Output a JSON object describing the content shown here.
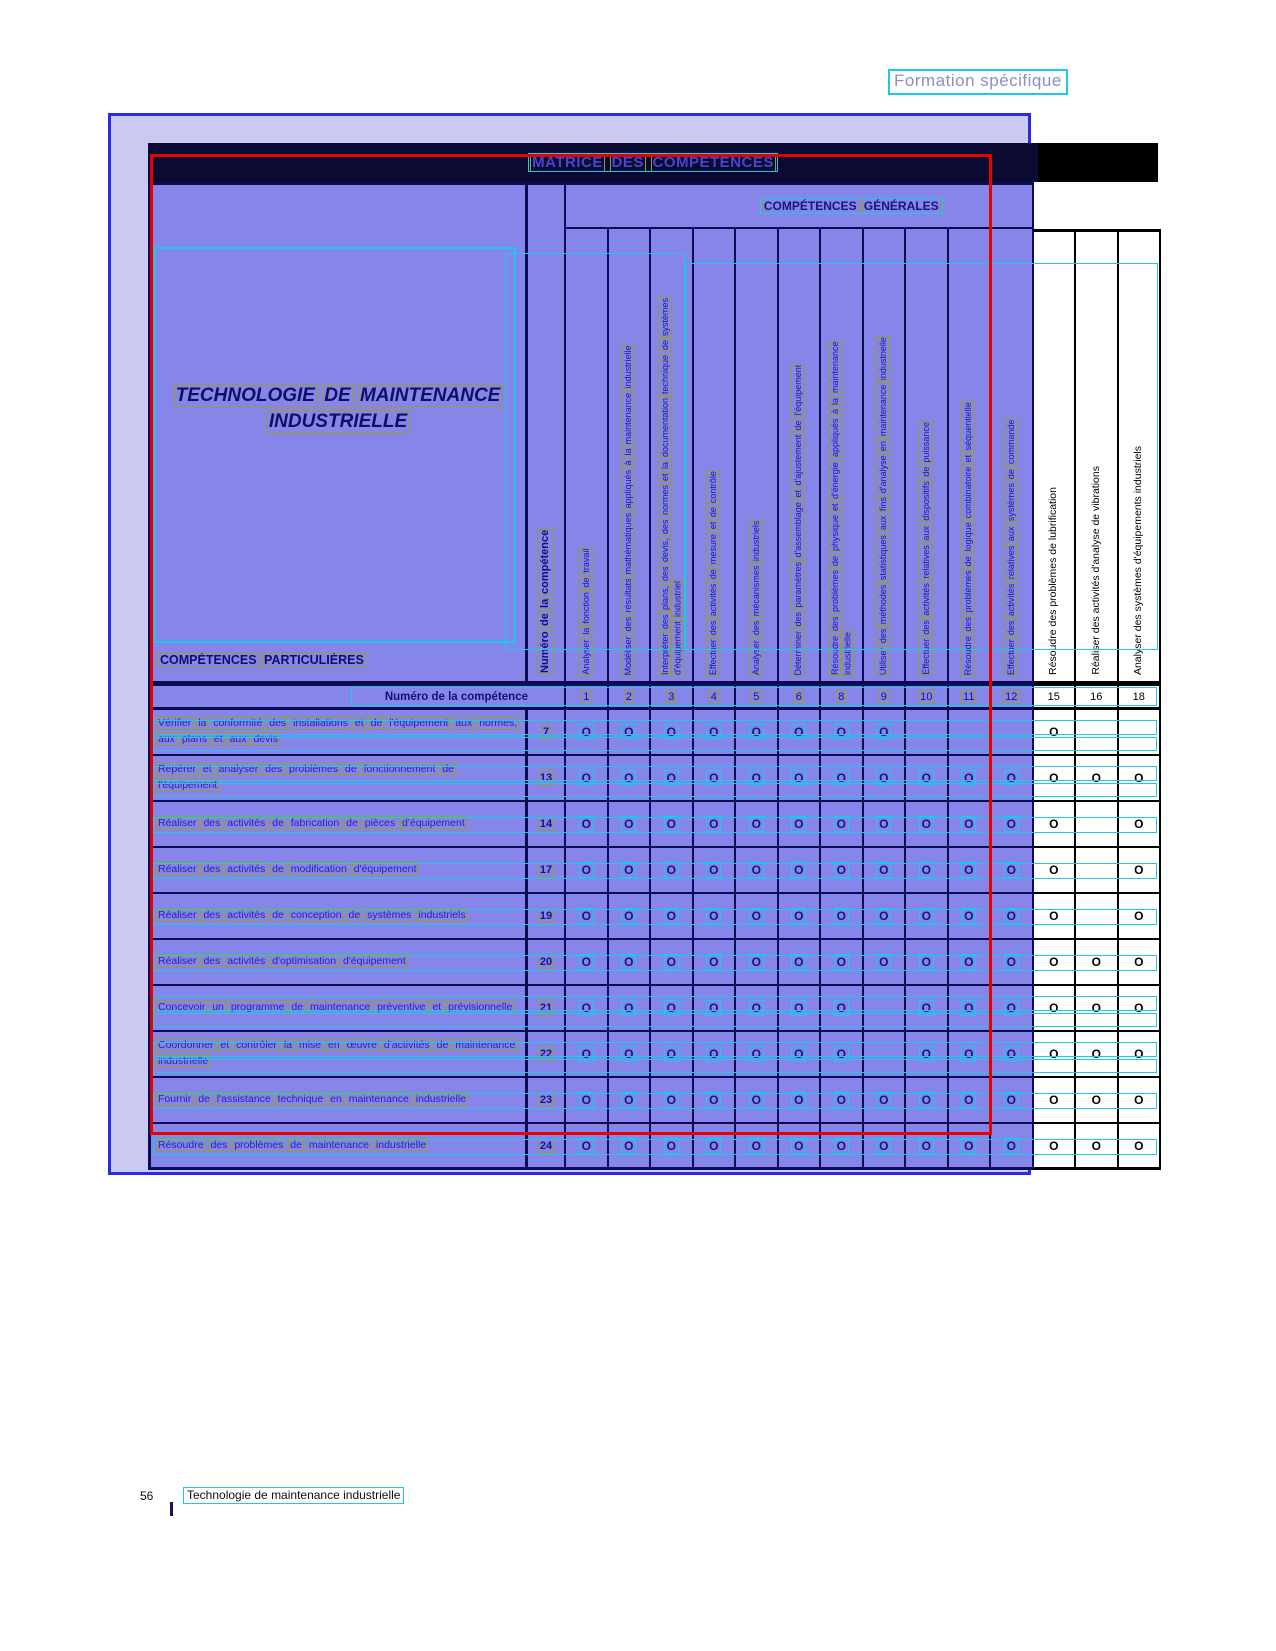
{
  "page": {
    "tag": "Formation spécifique",
    "footer_page_number": "56",
    "footer_text": "Technologie de maintenance industrielle"
  },
  "matrix": {
    "title": "MATRICE DES COMPÉTENCES",
    "general_header": "COMPÉTENCES GÉNÉRALES",
    "program_title": "TECHNOLOGIE DE MAINTENANCE INDUSTRIELLE",
    "particular_header": "COMPÉTENCES PARTICULIÈRES",
    "number_row_label": "Numéro de la compétence",
    "number_col_label": "Numéro de la compétence",
    "mark_glyph": "O",
    "columns": [
      {
        "num": "1",
        "zone": "purple",
        "label": "Analyser la fonction de travail"
      },
      {
        "num": "2",
        "zone": "purple",
        "label": "Modéliser des résultats mathématiques appliqués à la maintenance industrielle"
      },
      {
        "num": "3",
        "zone": "purple",
        "label": "Interpréter des plans, des devis, des normes et la documentation technique de systèmes d'équipement industriel"
      },
      {
        "num": "4",
        "zone": "purple",
        "label": "Effectuer des activités de mesure et de contrôle"
      },
      {
        "num": "5",
        "zone": "purple",
        "label": "Analyser des mécanismes industriels"
      },
      {
        "num": "6",
        "zone": "purple",
        "label": "Déterminer des paramètres d'assemblage et d'ajustement de l'équipement"
      },
      {
        "num": "8",
        "zone": "purple",
        "label": "Résoudre des problèmes de physique et d'énergie appliqués à la maintenance industrielle"
      },
      {
        "num": "9",
        "zone": "purple",
        "label": "Utiliser des méthodes statistiques aux fins d'analyse en maintenance industrielle"
      },
      {
        "num": "10",
        "zone": "purple",
        "label": "Effectuer des activités relatives aux dispositifs de puissance"
      },
      {
        "num": "11",
        "zone": "purple",
        "label": "Résoudre des problèmes de logique combinatoire et séquentielle"
      },
      {
        "num": "12",
        "zone": "purple",
        "label": "Effectuer des activités relatives aux systèmes de commande"
      },
      {
        "num": "15",
        "zone": "white",
        "label": "Résoudre des problèmes de lubrification"
      },
      {
        "num": "16",
        "zone": "white",
        "label": "Réaliser des activités d'analyse de vibrations"
      },
      {
        "num": "18",
        "zone": "white",
        "label": "Analyser des systèmes d'équipements industriels"
      }
    ],
    "rows": [
      {
        "num": "7",
        "lines": 2,
        "label": "Vérifier la conformité des installations et de l'équipement aux normes, aux plans et aux devis",
        "marks": [
          1,
          1,
          1,
          1,
          1,
          1,
          1,
          1,
          0,
          0,
          0,
          1,
          0,
          0
        ]
      },
      {
        "num": "13",
        "lines": 2,
        "label": "Repérer et analyser des problèmes de fonctionnement de l'équipement",
        "marks": [
          1,
          1,
          1,
          1,
          1,
          1,
          1,
          1,
          1,
          1,
          1,
          1,
          1,
          1
        ]
      },
      {
        "num": "14",
        "lines": 1,
        "label": "Réaliser des activités de fabrication de pièces d'équipement",
        "marks": [
          1,
          1,
          1,
          1,
          1,
          1,
          1,
          1,
          1,
          1,
          1,
          1,
          0,
          1
        ]
      },
      {
        "num": "17",
        "lines": 1,
        "label": "Réaliser des activités de modification d'équipement",
        "marks": [
          1,
          1,
          1,
          1,
          1,
          1,
          1,
          1,
          1,
          1,
          1,
          1,
          0,
          1
        ]
      },
      {
        "num": "19",
        "lines": 1,
        "label": "Réaliser des activités de conception de systèmes industriels",
        "marks": [
          1,
          1,
          1,
          1,
          1,
          1,
          1,
          1,
          1,
          1,
          1,
          1,
          0,
          1
        ]
      },
      {
        "num": "20",
        "lines": 1,
        "label": "Réaliser des activités d'optimisation d'équipement",
        "marks": [
          1,
          1,
          1,
          1,
          1,
          1,
          1,
          1,
          1,
          1,
          1,
          1,
          1,
          1
        ]
      },
      {
        "num": "21",
        "lines": 2,
        "label": "Concevoir un programme de maintenance préventive et prévisionnelle",
        "marks": [
          1,
          1,
          1,
          1,
          1,
          1,
          1,
          0,
          1,
          1,
          1,
          1,
          1,
          1
        ]
      },
      {
        "num": "22",
        "lines": 2,
        "label": "Coordonner et contrôler la mise en œuvre d'activités de maintenance industrielle",
        "marks": [
          1,
          1,
          1,
          1,
          1,
          1,
          1,
          0,
          1,
          1,
          1,
          1,
          1,
          1
        ]
      },
      {
        "num": "23",
        "lines": 1,
        "label": "Fournir de l'assistance technique en maintenance industrielle",
        "marks": [
          1,
          1,
          1,
          1,
          1,
          1,
          1,
          1,
          1,
          1,
          1,
          1,
          1,
          1
        ]
      },
      {
        "num": "24",
        "lines": 1,
        "label": "Résoudre des problèmes de maintenance industrielle",
        "marks": [
          1,
          1,
          1,
          1,
          1,
          1,
          1,
          1,
          1,
          1,
          1,
          1,
          1,
          1
        ]
      }
    ],
    "colors": {
      "annotation_cyan": "#17cbe9",
      "annotation_red": "#e80000",
      "annotation_olive": "#9b9b2f",
      "overlay_lavender": "#c9c9f2",
      "table_purple": "#8686ea",
      "border_navy": "#0c0c55",
      "band_navy": "#0a0a33"
    }
  }
}
